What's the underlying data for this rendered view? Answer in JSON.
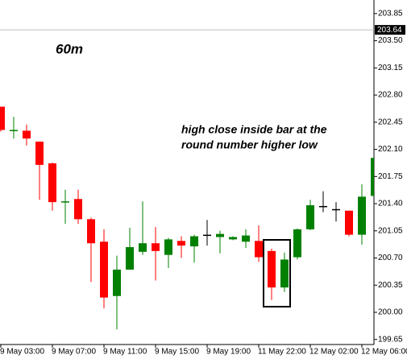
{
  "chart_data": {
    "type": "candlestick",
    "annotations": [
      "60m",
      "high close inside bar at the",
      "round number higher low"
    ],
    "categories": [
      "9 May 03:00",
      null,
      null,
      null,
      "9 May 07:00",
      null,
      null,
      null,
      "9 May 11:00",
      null,
      null,
      null,
      "9 May 15:00",
      null,
      null,
      null,
      "9 May 19:00",
      null,
      null,
      null,
      "11 May 22:00",
      null,
      null,
      null,
      "12 May 02:00",
      null,
      null,
      null,
      "12 May 06:00",
      null
    ],
    "open": [
      202.65,
      202.34,
      202.34,
      202.2,
      201.92,
      201.42,
      201.46,
      201.2,
      200.91,
      200.21,
      200.55,
      200.78,
      200.89,
      200.74,
      200.92,
      200.85,
      201.0,
      200.97,
      200.94,
      200.91,
      200.92,
      200.79,
      200.32,
      200.71,
      201.07,
      201.37,
      201.33,
      201.31,
      201.0,
      201.5
    ],
    "high": [
      202.65,
      202.52,
      202.42,
      202.2,
      201.93,
      201.58,
      201.58,
      201.22,
      201.07,
      200.73,
      201.09,
      201.43,
      201.1,
      200.96,
      200.98,
      201.0,
      201.19,
      201.05,
      200.98,
      201.07,
      201.12,
      200.82,
      200.77,
      201.08,
      201.45,
      201.56,
      201.42,
      201.31,
      201.65,
      202.24
    ],
    "low": [
      202.33,
      202.24,
      202.15,
      201.45,
      201.31,
      201.14,
      201.14,
      200.39,
      200.05,
      199.78,
      200.55,
      200.74,
      200.41,
      200.57,
      200.7,
      200.64,
      200.86,
      200.76,
      200.93,
      200.83,
      200.65,
      200.16,
      200.26,
      200.68,
      201.06,
      201.29,
      201.17,
      200.98,
      200.87,
      201.49
    ],
    "close": [
      202.35,
      202.35,
      202.24,
      201.9,
      201.42,
      201.43,
      201.2,
      200.89,
      200.19,
      200.55,
      200.84,
      200.89,
      200.79,
      200.94,
      200.86,
      200.98,
      201.0,
      201.01,
      200.97,
      200.99,
      200.71,
      200.32,
      200.68,
      201.07,
      201.38,
      201.37,
      201.33,
      201.0,
      201.49,
      201.99
    ],
    "colors": {
      "up": "#008000",
      "down": "#ff0000",
      "doji": "#000000"
    },
    "ylim": [
      199.585,
      204.025
    ],
    "yticks": [
      199.65,
      {
        "value": 200.0,
        "label": "200.00"
      },
      200.35,
      {
        "value": 200.7,
        "label": "200.70"
      },
      201.05,
      {
        "value": 201.4,
        "label": "201.40"
      },
      201.75,
      {
        "value": 202.1,
        "label": "202.10"
      },
      202.45,
      {
        "value": 202.8,
        "label": "202.80"
      },
      203.15,
      {
        "value": 203.5,
        "label": "203.50"
      },
      203.85
    ],
    "current_price": 203.64
  }
}
